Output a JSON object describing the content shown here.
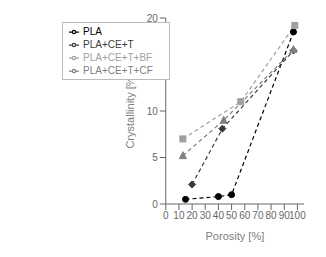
{
  "chart_data": {
    "type": "line",
    "xlabel": "Porosity [%]",
    "ylabel": "Crystallinity [%]",
    "xlim": [
      0,
      105
    ],
    "ylim": [
      0,
      20
    ],
    "xticks": [
      0,
      10,
      20,
      30,
      40,
      50,
      60,
      70,
      80,
      90,
      100
    ],
    "yticks": [
      0,
      5,
      10,
      15,
      20
    ],
    "grid": false,
    "legend": "upper left",
    "series": [
      {
        "name": "PLA",
        "color": "#000000",
        "marker": "circle",
        "line_style": "dashed",
        "x": [
          15,
          40,
          50,
          97
        ],
        "values": [
          0.5,
          0.8,
          1.0,
          18.5
        ]
      },
      {
        "name": "PLA+CE+T",
        "color": "#3a3a3a",
        "marker": "diamond",
        "line_style": "dashed",
        "x": [
          20,
          43,
          97
        ],
        "values": [
          2.1,
          8.1,
          16.5
        ]
      },
      {
        "name": "PLA+CE+T+CF",
        "color": "#808080",
        "marker": "triangle",
        "line_style": "dashed",
        "x": [
          13,
          44,
          97
        ],
        "values": [
          5.2,
          9.0,
          16.6
        ]
      },
      {
        "name": "PLA+CE+T+BF",
        "color": "#a0a0a0",
        "marker": "square",
        "line_style": "dashed",
        "x": [
          13,
          57,
          98
        ],
        "values": [
          7.0,
          11.0,
          19.2
        ]
      }
    ]
  }
}
